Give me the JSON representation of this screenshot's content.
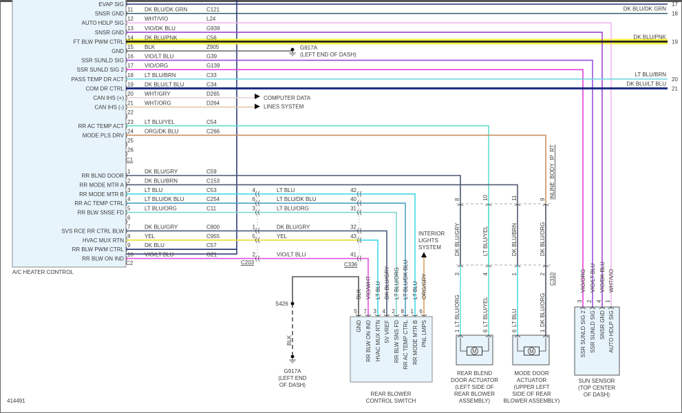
{
  "figure_number": "414491",
  "heater_control": {
    "name": "A/C HEATER CONTROL",
    "c1_label": "C1",
    "c2_label": "C2",
    "c1_pins": [
      {
        "pin": "10",
        "func": "EVAP SIG",
        "wire": "",
        "circuit": "",
        "color": "#1f2f6e"
      },
      {
        "pin": "11",
        "func": "SNSR GND",
        "wire": "DK BLU/DK GRN",
        "circuit": "C121",
        "color": "#1d4f5e"
      },
      {
        "pin": "12",
        "func": "AUTO HDLP SIG",
        "wire": "WHT/VIO",
        "circuit": "L24",
        "color": "#f0b8ec"
      },
      {
        "pin": "13",
        "func": "SNSR GND",
        "wire": "VIO/DK BLU",
        "circuit": "G939",
        "color": "#a044d0"
      },
      {
        "pin": "14",
        "func": "FT BLW PWM CTRL",
        "wire": "DK BLU/PNK",
        "circuit": "C56",
        "color": "#1a1a1a"
      },
      {
        "pin": "15",
        "func": "GND",
        "wire": "BLK",
        "circuit": "Z905",
        "color": "#666666"
      },
      {
        "pin": "16",
        "func": "SSR SUNLD SIG",
        "wire": "VIO/LT BLU",
        "circuit": "G39",
        "color": "#9a4fe0"
      },
      {
        "pin": "17",
        "func": "SSR SUNLD SIG 2",
        "wire": "VIO/ORG",
        "circuit": "G139",
        "color": "#e040d8"
      },
      {
        "pin": "18",
        "func": "PASS TEMP DR ACT",
        "wire": "LT BLU/BRN",
        "circuit": "C33",
        "color": "#70d8e0"
      },
      {
        "pin": "19",
        "func": "COM DR CTRL",
        "wire": "DK BLU/LT BLU",
        "circuit": "C34",
        "color": "#1a2a80"
      },
      {
        "pin": "20",
        "func": "CAN IHS (+)",
        "wire": "WHT/GRY",
        "circuit": "D265",
        "color": "#e8d0d0"
      },
      {
        "pin": "21",
        "func": "CAN IHS (-)",
        "wire": "WHT/ORG",
        "circuit": "D264",
        "color": "#e0c0a0"
      },
      {
        "pin": "22",
        "func": "",
        "wire": "",
        "circuit": "",
        "color": ""
      },
      {
        "pin": "23",
        "func": "RR AC TEMP ACT",
        "wire": "LT BLU/YEL",
        "circuit": "C54",
        "color": "#60e0d0"
      },
      {
        "pin": "24",
        "func": "MODE PLS DRV",
        "wire": "ORG/DK BLU",
        "circuit": "C266",
        "color": "#c89060"
      },
      {
        "pin": "25",
        "func": "",
        "wire": "",
        "circuit": "",
        "color": ""
      },
      {
        "pin": "26",
        "func": "",
        "wire": "",
        "circuit": "",
        "color": ""
      }
    ],
    "c2_pins": [
      {
        "pin": "1",
        "func": "RR BLND DOOR",
        "wire": "DK BLU/GRY",
        "circuit": "C59",
        "color": "#4a5570"
      },
      {
        "pin": "2",
        "func": "RR MODE MTR A",
        "wire": "DK BLU/BRN",
        "circuit": "C153",
        "color": "#505870"
      },
      {
        "pin": "3",
        "func": "RR MODE MTR B",
        "wire": "LT BLU",
        "circuit": "C53",
        "color": "#40d8e8"
      },
      {
        "pin": "4",
        "func": "RR AC TEMP CTRL",
        "wire": "LT BLU/DK BLU",
        "circuit": "C254",
        "color": "#4aa0c8"
      },
      {
        "pin": "5",
        "func": "RR BLW SNSE FD",
        "wire": "LT BLU/ORG",
        "circuit": "C11",
        "color": "#80d8d0"
      },
      {
        "pin": "6",
        "func": "",
        "wire": "",
        "circuit": "",
        "color": ""
      },
      {
        "pin": "7",
        "func": "SVS RCE RR CTRL BLW",
        "wire": "DK BLU/GRY",
        "circuit": "C800",
        "color": "#4a5a80"
      },
      {
        "pin": "8",
        "func": "HVAC MUX RTN",
        "wire": "YEL",
        "circuit": "C955",
        "color": "#e8e040"
      },
      {
        "pin": "9",
        "func": "RR BLW PWM CTRL",
        "wire": "DK BLU",
        "circuit": "C57",
        "color": "#1a2a70"
      },
      {
        "pin": "10",
        "func": "RR BLW ON IND",
        "wire": "VIO/LT BLU",
        "circuit": "G21",
        "color": "#e050e0"
      }
    ]
  },
  "right_edge": [
    {
      "wire": "",
      "ref": "17"
    },
    {
      "wire": "DK BLU/DK GRN",
      "ref": "18"
    },
    {
      "wire": "DK BLU/PNK",
      "ref": "19"
    },
    {
      "wire": "LT BLU/BRN",
      "ref": "20"
    },
    {
      "wire": "DK BLU/LT BLU",
      "ref": "21"
    }
  ],
  "ground_top": {
    "name": "G917A",
    "location": "(LEFT END OF DASH)"
  },
  "computer_data": {
    "line1": "COMPUTER DATA",
    "line2": "LINES SYSTEM"
  },
  "highlight_color": "#f4f040",
  "inline": {
    "c203": "C203",
    "c336": "C336",
    "rows": [
      {
        "c203_pin": "4",
        "wire": "LT BLU",
        "c336_pin": "42"
      },
      {
        "c203_pin": "6",
        "wire": "LT BLU/DK BLU",
        "c336_pin": "40"
      },
      {
        "c203_pin": "3",
        "wire": "LT BLU/ORG",
        "c336_pin": "31"
      },
      {
        "c203_pin": "1",
        "wire": "DK BLU/GRY",
        "c336_pin": "32"
      },
      {
        "c203_pin": "5",
        "wire": "YEL",
        "c336_pin": "43"
      },
      {
        "c203_pin": "2",
        "wire": "VIO/LT BLU",
        "c336_pin": "41"
      }
    ]
  },
  "interior_lights": {
    "line1": "INTERIOR",
    "line2": "LIGHTS",
    "line3": "SYSTEM"
  },
  "rear_blower_switch": {
    "title1": "REAR BLOWER",
    "title2": "CONTROL SWITCH",
    "pins": [
      {
        "pin": "5",
        "wire": "BLK",
        "func": "GND"
      },
      {
        "pin": "7",
        "wire": "VIO/WHT",
        "func": "RR BLW ON IND"
      },
      {
        "pin": "3",
        "wire": "LT BLU",
        "func": "HVAC MUX RTN"
      },
      {
        "pin": "4",
        "wire": "DK BLU/GRY",
        "func": "5V VREF"
      },
      {
        "pin": "2",
        "wire": "LT BLU/ORG",
        "func": "RR BLW SNS FD"
      },
      {
        "pin": "8",
        "wire": "LT BLU/DK BLU",
        "func": "RR AC TEMP CTRL"
      },
      {
        "pin": "1",
        "wire": "LT BLU",
        "func": "RR MODE MTR B"
      },
      {
        "pin": "6",
        "wire": "ORG/GRY",
        "func": "PNL LMPS"
      }
    ]
  },
  "splice": {
    "name": "S426",
    "wire": "BLK"
  },
  "ground_bottom": {
    "name": "G917A",
    "line1": "(LEFT END",
    "line2": "OF DASH)"
  },
  "c310": {
    "name": "C310",
    "inline_name": "INLINE_BODY_IP_RT",
    "upper": [
      {
        "pin": "8",
        "wire": "DK BLU/GRY"
      },
      {
        "pin": "10",
        "wire": "LT BLU/YEL"
      },
      {
        "pin": "11",
        "wire": "DK BLU/BRN"
      },
      {
        "pin": "9",
        "wire": "DK BLU/ORG"
      }
    ],
    "lower": [
      {
        "pin": "3",
        "wire": "LT BLU/ORG"
      },
      {
        "pin": "4",
        "wire": "LT BLU/YEL"
      },
      {
        "pin": "1",
        "wire": "LT BLU"
      },
      {
        "pin": "2",
        "wire": "DK BLU/ORG"
      }
    ]
  },
  "rear_blend_actuator": {
    "pins": [
      "1",
      "6"
    ],
    "motor": "M",
    "lines": [
      "REAR BLEND",
      "DOOR ACTUATOR",
      "(LEFT SIDE OF",
      "REAR BLOWER",
      "ASSEMBLY)"
    ]
  },
  "mode_door_actuator": {
    "pins": [
      "6",
      "1"
    ],
    "motor": "M",
    "lines": [
      "MODE DOOR",
      "ACTUATOR",
      "(UPPER LEFT",
      "SIDE OF REAR",
      "BLOWER ASSEMBLY)"
    ]
  },
  "sun_sensor": {
    "lines": [
      "SUN SENSOR",
      "(TOP CENTER",
      "OF DASH)"
    ],
    "pins": [
      {
        "pin": "3",
        "wire": "VIO/ORG",
        "func": "SSR SUNLD SIG 2"
      },
      {
        "pin": "2",
        "wire": "VIO/LT BLU",
        "func": "SSR SUNLD SIG"
      },
      {
        "pin": "4",
        "wire": "VIO/DK BLU",
        "func": "SNSR GND"
      },
      {
        "pin": "1",
        "wire": "WHT/VIO",
        "func": "AUTO HDLP SIG"
      }
    ]
  }
}
